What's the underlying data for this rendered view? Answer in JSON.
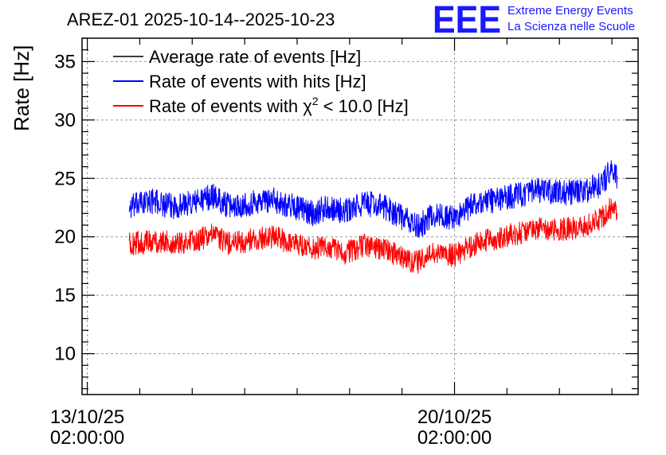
{
  "chart_data": {
    "type": "line",
    "title": "AREZ-01 2025-10-14--2025-10-23",
    "ylabel": "Rate [Hz]",
    "xlabel": "",
    "ylim": [
      6.5,
      37
    ],
    "xlim_days": [
      -0.1,
      10.5
    ],
    "grid": true,
    "legend_position": "top-left",
    "x_ticks": [
      {
        "day": 0,
        "label_date": "13/10/25",
        "label_time": "02:00:00"
      },
      {
        "day": 7,
        "label_date": "20/10/25",
        "label_time": "02:00:00"
      }
    ],
    "y_ticks": [
      10,
      15,
      20,
      25,
      30,
      35
    ],
    "x_unit": "days since 13/10/25 02:00:00",
    "series": [
      {
        "name": "Average rate of events [Hz]",
        "color": "#000000",
        "x": [],
        "y": []
      },
      {
        "name": "Rate of events with hits [Hz]",
        "color": "#0000ff",
        "noise": 1.1,
        "x": [
          0.8,
          1.2,
          1.6,
          2.0,
          2.4,
          2.7,
          3.0,
          3.5,
          4.0,
          4.3,
          4.6,
          4.9,
          5.3,
          5.7,
          6.1,
          6.3,
          6.6,
          7.0,
          7.4,
          7.8,
          8.2,
          8.6,
          9.0,
          9.4,
          9.8,
          10.0,
          10.1
        ],
        "y": [
          22.5,
          23.1,
          22.6,
          22.9,
          23.5,
          22.6,
          22.8,
          23.2,
          22.5,
          22.0,
          22.6,
          22.1,
          22.9,
          22.5,
          21.4,
          20.8,
          21.9,
          21.6,
          22.9,
          23.2,
          23.6,
          23.9,
          23.8,
          23.8,
          24.5,
          25.8,
          24.9
        ]
      },
      {
        "name": "Rate of events with χ² < 10.0 [Hz]",
        "color": "#ff0000",
        "noise": 1.0,
        "x": [
          0.8,
          1.2,
          1.6,
          2.0,
          2.4,
          2.7,
          3.0,
          3.5,
          4.0,
          4.3,
          4.6,
          4.9,
          5.3,
          5.7,
          6.1,
          6.3,
          6.6,
          7.0,
          7.4,
          7.8,
          8.2,
          8.6,
          9.0,
          9.4,
          9.8,
          10.0,
          10.1
        ],
        "y": [
          19.4,
          19.6,
          19.5,
          19.6,
          20.2,
          19.4,
          19.6,
          20.0,
          19.4,
          19.0,
          19.1,
          18.6,
          19.3,
          18.9,
          18.0,
          17.8,
          18.6,
          18.4,
          19.4,
          19.9,
          20.3,
          20.7,
          20.6,
          20.8,
          21.5,
          22.6,
          21.9
        ]
      }
    ]
  },
  "legend": {
    "item1": "Average rate of events [Hz]",
    "item2": "Rate of events with hits [Hz]",
    "item3_pre": "Rate of events with χ",
    "item3_sup": "2",
    "item3_post": " < 10.0 [Hz]"
  },
  "logo": {
    "mark": "EEE",
    "line1": "Extreme Energy Events",
    "line2": "La Scienza nelle Scuole"
  }
}
